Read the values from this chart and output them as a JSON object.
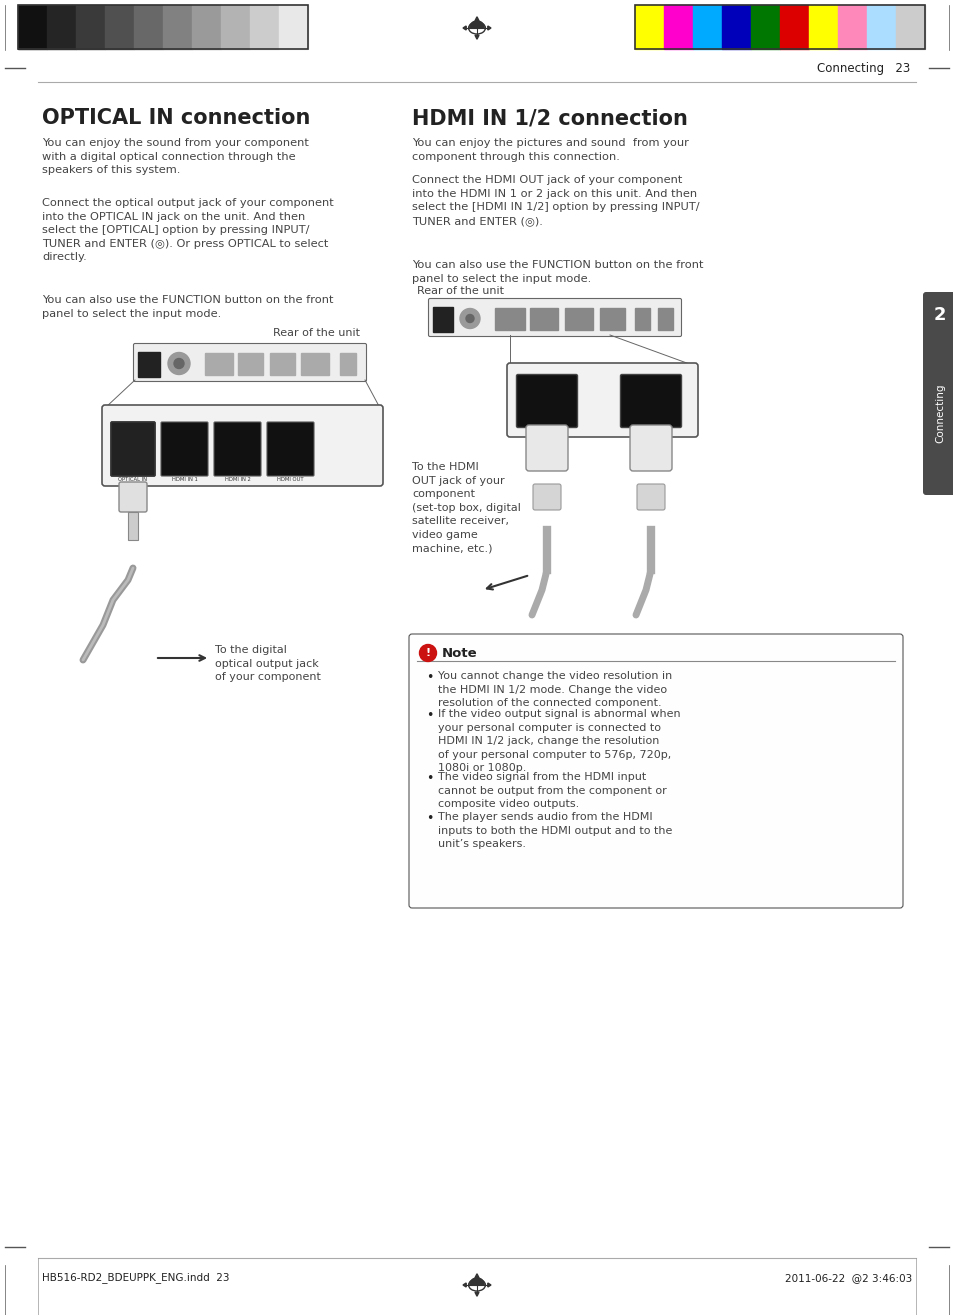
{
  "page_bg": "#ffffff",
  "top_bar_colors_left": [
    "#111111",
    "#252525",
    "#3a3a3a",
    "#505050",
    "#686868",
    "#818181",
    "#9a9a9a",
    "#b3b3b3",
    "#cccccc",
    "#e8e8e8"
  ],
  "top_bar_colors_right": [
    "#ffff00",
    "#ff00cc",
    "#00aaff",
    "#0000bb",
    "#007700",
    "#dd0000",
    "#ffff00",
    "#ff88bb",
    "#aaddff",
    "#cccccc"
  ],
  "header_line_color": "#aaaaaa",
  "header_text": "Connecting   23",
  "footer_text_left": "HB516-RD2_BDEUPPK_ENG.indd  23",
  "footer_text_right": "2011-06-22  @2 3:46:03",
  "sidebar_text": "Connecting",
  "sidebar_number": "2",
  "optical_title": "OPTICAL IN connection",
  "optical_para1": "You can enjoy the sound from your component\nwith a digital optical connection through the\nspeakers of this system.",
  "optical_para2": "Connect the optical output jack of your component\ninto the OPTICAL IN jack on the unit. And then\nselect the [OPTICAL] option by pressing INPUT/\nTUNER and ENTER (◎). Or press OPTICAL to select\ndirectly.",
  "optical_para3": "You can also use the FUNCTION button on the front\npanel to select the input mode.",
  "optical_label_rear": "Rear of the unit",
  "optical_label_cable": "To the digital\noptical output jack\nof your component",
  "hdmi_title": "HDMI IN 1/2 connection",
  "hdmi_para1": "You can enjoy the pictures and sound  from your\ncomponent through this connection.",
  "hdmi_para2": "Connect the HDMI OUT jack of your component\ninto the HDMI IN 1 or 2 jack on this unit. And then\nselect the [HDMI IN 1/2] option by pressing INPUT/\nTUNER and ENTER (◎).",
  "hdmi_para3": "You can also use the FUNCTION button on the front\npanel to select the input mode.",
  "hdmi_label_rear": "Rear of the unit",
  "hdmi_label_cable": "To the HDMI\nOUT jack of your\ncomponent\n(set-top box, digital\nsatellite receiver,\nvideo game\nmachine, etc.)",
  "note_title": "Note",
  "note_bullet1": "You cannot change the video resolution in\nthe HDMI IN 1/2 mode. Change the video\nresolution of the connected component.",
  "note_bullet2": "If the video output signal is abnormal when\nyour personal computer is connected to\nHDMI IN 1/2 jack, change the resolution\nof your personal computer to 576p, 720p,\n1080i or 1080p.",
  "note_bullet3": "The video signal from the HDMI input\ncannot be output from the component or\ncomposite video outputs.",
  "note_bullet4": "The player sends audio from the HDMI\ninputs to both the HDMI output and to the\nunit’s speakers.",
  "text_color": "#222222",
  "light_text_color": "#444444",
  "note_border_color": "#555555"
}
